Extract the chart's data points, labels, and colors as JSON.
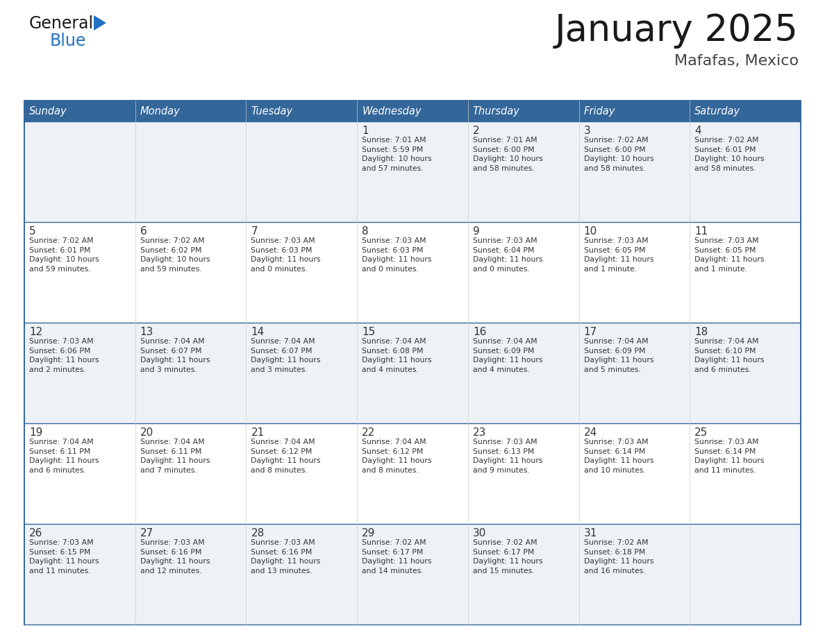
{
  "title": "January 2025",
  "subtitle": "Mafafas, Mexico",
  "header_bg": "#336699",
  "header_text_color": "#ffffff",
  "cell_bg_odd": "#eef2f7",
  "cell_bg_even": "#ffffff",
  "border_color": "#336699",
  "text_color": "#333333",
  "days_of_week": [
    "Sunday",
    "Monday",
    "Tuesday",
    "Wednesday",
    "Thursday",
    "Friday",
    "Saturday"
  ],
  "calendar": [
    [
      {
        "day": "",
        "info": ""
      },
      {
        "day": "",
        "info": ""
      },
      {
        "day": "",
        "info": ""
      },
      {
        "day": "1",
        "info": "Sunrise: 7:01 AM\nSunset: 5:59 PM\nDaylight: 10 hours\nand 57 minutes."
      },
      {
        "day": "2",
        "info": "Sunrise: 7:01 AM\nSunset: 6:00 PM\nDaylight: 10 hours\nand 58 minutes."
      },
      {
        "day": "3",
        "info": "Sunrise: 7:02 AM\nSunset: 6:00 PM\nDaylight: 10 hours\nand 58 minutes."
      },
      {
        "day": "4",
        "info": "Sunrise: 7:02 AM\nSunset: 6:01 PM\nDaylight: 10 hours\nand 58 minutes."
      }
    ],
    [
      {
        "day": "5",
        "info": "Sunrise: 7:02 AM\nSunset: 6:01 PM\nDaylight: 10 hours\nand 59 minutes."
      },
      {
        "day": "6",
        "info": "Sunrise: 7:02 AM\nSunset: 6:02 PM\nDaylight: 10 hours\nand 59 minutes."
      },
      {
        "day": "7",
        "info": "Sunrise: 7:03 AM\nSunset: 6:03 PM\nDaylight: 11 hours\nand 0 minutes."
      },
      {
        "day": "8",
        "info": "Sunrise: 7:03 AM\nSunset: 6:03 PM\nDaylight: 11 hours\nand 0 minutes."
      },
      {
        "day": "9",
        "info": "Sunrise: 7:03 AM\nSunset: 6:04 PM\nDaylight: 11 hours\nand 0 minutes."
      },
      {
        "day": "10",
        "info": "Sunrise: 7:03 AM\nSunset: 6:05 PM\nDaylight: 11 hours\nand 1 minute."
      },
      {
        "day": "11",
        "info": "Sunrise: 7:03 AM\nSunset: 6:05 PM\nDaylight: 11 hours\nand 1 minute."
      }
    ],
    [
      {
        "day": "12",
        "info": "Sunrise: 7:03 AM\nSunset: 6:06 PM\nDaylight: 11 hours\nand 2 minutes."
      },
      {
        "day": "13",
        "info": "Sunrise: 7:04 AM\nSunset: 6:07 PM\nDaylight: 11 hours\nand 3 minutes."
      },
      {
        "day": "14",
        "info": "Sunrise: 7:04 AM\nSunset: 6:07 PM\nDaylight: 11 hours\nand 3 minutes."
      },
      {
        "day": "15",
        "info": "Sunrise: 7:04 AM\nSunset: 6:08 PM\nDaylight: 11 hours\nand 4 minutes."
      },
      {
        "day": "16",
        "info": "Sunrise: 7:04 AM\nSunset: 6:09 PM\nDaylight: 11 hours\nand 4 minutes."
      },
      {
        "day": "17",
        "info": "Sunrise: 7:04 AM\nSunset: 6:09 PM\nDaylight: 11 hours\nand 5 minutes."
      },
      {
        "day": "18",
        "info": "Sunrise: 7:04 AM\nSunset: 6:10 PM\nDaylight: 11 hours\nand 6 minutes."
      }
    ],
    [
      {
        "day": "19",
        "info": "Sunrise: 7:04 AM\nSunset: 6:11 PM\nDaylight: 11 hours\nand 6 minutes."
      },
      {
        "day": "20",
        "info": "Sunrise: 7:04 AM\nSunset: 6:11 PM\nDaylight: 11 hours\nand 7 minutes."
      },
      {
        "day": "21",
        "info": "Sunrise: 7:04 AM\nSunset: 6:12 PM\nDaylight: 11 hours\nand 8 minutes."
      },
      {
        "day": "22",
        "info": "Sunrise: 7:04 AM\nSunset: 6:12 PM\nDaylight: 11 hours\nand 8 minutes."
      },
      {
        "day": "23",
        "info": "Sunrise: 7:03 AM\nSunset: 6:13 PM\nDaylight: 11 hours\nand 9 minutes."
      },
      {
        "day": "24",
        "info": "Sunrise: 7:03 AM\nSunset: 6:14 PM\nDaylight: 11 hours\nand 10 minutes."
      },
      {
        "day": "25",
        "info": "Sunrise: 7:03 AM\nSunset: 6:14 PM\nDaylight: 11 hours\nand 11 minutes."
      }
    ],
    [
      {
        "day": "26",
        "info": "Sunrise: 7:03 AM\nSunset: 6:15 PM\nDaylight: 11 hours\nand 11 minutes."
      },
      {
        "day": "27",
        "info": "Sunrise: 7:03 AM\nSunset: 6:16 PM\nDaylight: 11 hours\nand 12 minutes."
      },
      {
        "day": "28",
        "info": "Sunrise: 7:03 AM\nSunset: 6:16 PM\nDaylight: 11 hours\nand 13 minutes."
      },
      {
        "day": "29",
        "info": "Sunrise: 7:02 AM\nSunset: 6:17 PM\nDaylight: 11 hours\nand 14 minutes."
      },
      {
        "day": "30",
        "info": "Sunrise: 7:02 AM\nSunset: 6:17 PM\nDaylight: 11 hours\nand 15 minutes."
      },
      {
        "day": "31",
        "info": "Sunrise: 7:02 AM\nSunset: 6:18 PM\nDaylight: 11 hours\nand 16 minutes."
      },
      {
        "day": "",
        "info": ""
      }
    ]
  ],
  "logo_general_color": "#1a1a1a",
  "logo_blue_color": "#2272c3",
  "logo_triangle_color": "#2272c3",
  "fig_width": 11.88,
  "fig_height": 9.18,
  "dpi": 100
}
